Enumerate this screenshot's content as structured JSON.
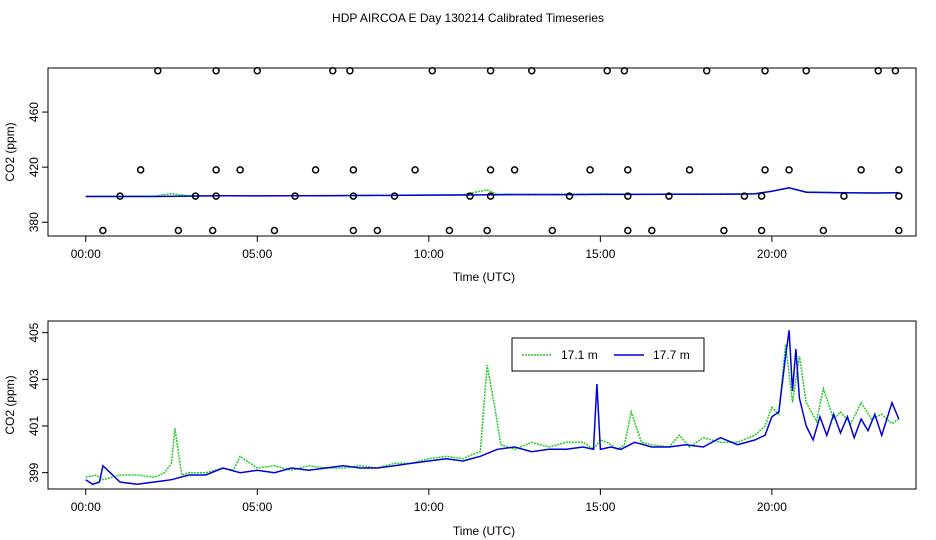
{
  "title": "HDP AIRCOA E  Day 130214  Calibrated Timeseries",
  "colors": {
    "s171": "#22cc22",
    "s177": "#0000dd",
    "points": "#000000"
  },
  "chart_data": [
    {
      "type": "line",
      "panel": "top",
      "xlabel": "Time (UTC)",
      "ylabel": "CO2 (ppm)",
      "xlim": [
        -1.1,
        24.2
      ],
      "ylim": [
        370,
        492
      ],
      "x_ticks": [
        0,
        5,
        10,
        15,
        20
      ],
      "x_tick_labels": [
        "00:00",
        "05:00",
        "10:00",
        "15:00",
        "20:00"
      ],
      "y_ticks": [
        380,
        420,
        460
      ],
      "y_tick_labels": [
        "380",
        "420",
        "460"
      ],
      "grid": false,
      "series": [
        {
          "color_key": "s171",
          "x": [
            0,
            2,
            2.5,
            3,
            4,
            5,
            6,
            7,
            8,
            9,
            10,
            11,
            11.7,
            12,
            13,
            14,
            15,
            16,
            17,
            18,
            19,
            19.5,
            20,
            20.5,
            21,
            22,
            23,
            23.7
          ],
          "values": [
            398.8,
            399.0,
            400.8,
            399.2,
            399.3,
            399.2,
            399.3,
            399.4,
            399.5,
            399.6,
            399.8,
            400.0,
            403.5,
            400.3,
            400.3,
            400.3,
            400.5,
            400.3,
            400.4,
            400.5,
            400.6,
            400.8,
            402.5,
            404.8,
            402.0,
            401.5,
            401.2,
            401.5
          ]
        },
        {
          "color_key": "s177",
          "x": [
            0,
            2,
            3,
            4,
            5,
            6,
            7,
            8,
            9,
            10,
            11,
            12,
            13,
            14,
            15,
            16,
            17,
            18,
            19,
            19.5,
            20,
            20.5,
            21,
            22,
            23,
            23.7
          ],
          "values": [
            398.7,
            398.7,
            399.0,
            399.2,
            399.1,
            399.2,
            399.3,
            399.4,
            399.5,
            399.7,
            399.8,
            400.0,
            400.1,
            400.1,
            400.2,
            400.2,
            400.3,
            400.3,
            400.4,
            400.6,
            402.5,
            405.0,
            401.8,
            401.4,
            401.2,
            401.4
          ]
        }
      ],
      "points": [
        {
          "x": 0.5,
          "y": 374
        },
        {
          "x": 2.1,
          "y": 490
        },
        {
          "x": 3.8,
          "y": 490
        },
        {
          "x": 5.0,
          "y": 490
        },
        {
          "x": 7.2,
          "y": 490
        },
        {
          "x": 7.7,
          "y": 490
        },
        {
          "x": 10.1,
          "y": 490
        },
        {
          "x": 11.8,
          "y": 490
        },
        {
          "x": 13.0,
          "y": 490
        },
        {
          "x": 15.2,
          "y": 490
        },
        {
          "x": 15.7,
          "y": 490
        },
        {
          "x": 18.1,
          "y": 490
        },
        {
          "x": 19.8,
          "y": 490
        },
        {
          "x": 21.0,
          "y": 490
        },
        {
          "x": 23.1,
          "y": 490
        },
        {
          "x": 23.6,
          "y": 490
        },
        {
          "x": 1.6,
          "y": 418
        },
        {
          "x": 3.8,
          "y": 418
        },
        {
          "x": 4.5,
          "y": 418
        },
        {
          "x": 6.7,
          "y": 418
        },
        {
          "x": 7.8,
          "y": 418
        },
        {
          "x": 9.6,
          "y": 418
        },
        {
          "x": 11.8,
          "y": 418
        },
        {
          "x": 12.5,
          "y": 418
        },
        {
          "x": 14.7,
          "y": 418
        },
        {
          "x": 15.8,
          "y": 418
        },
        {
          "x": 17.6,
          "y": 418
        },
        {
          "x": 19.8,
          "y": 418
        },
        {
          "x": 20.5,
          "y": 418
        },
        {
          "x": 22.6,
          "y": 418
        },
        {
          "x": 23.7,
          "y": 418
        },
        {
          "x": 1.0,
          "y": 399
        },
        {
          "x": 3.2,
          "y": 399
        },
        {
          "x": 3.8,
          "y": 399
        },
        {
          "x": 6.1,
          "y": 399
        },
        {
          "x": 7.8,
          "y": 399
        },
        {
          "x": 9.0,
          "y": 399
        },
        {
          "x": 11.2,
          "y": 399
        },
        {
          "x": 11.8,
          "y": 399
        },
        {
          "x": 14.1,
          "y": 399
        },
        {
          "x": 15.8,
          "y": 399
        },
        {
          "x": 17.0,
          "y": 399
        },
        {
          "x": 19.2,
          "y": 399
        },
        {
          "x": 19.7,
          "y": 399
        },
        {
          "x": 22.1,
          "y": 399
        },
        {
          "x": 23.7,
          "y": 399
        },
        {
          "x": 2.7,
          "y": 374
        },
        {
          "x": 3.7,
          "y": 374
        },
        {
          "x": 5.5,
          "y": 374
        },
        {
          "x": 7.8,
          "y": 374
        },
        {
          "x": 8.5,
          "y": 374
        },
        {
          "x": 10.6,
          "y": 374
        },
        {
          "x": 11.7,
          "y": 374
        },
        {
          "x": 13.6,
          "y": 374
        },
        {
          "x": 15.8,
          "y": 374
        },
        {
          "x": 16.5,
          "y": 374
        },
        {
          "x": 18.6,
          "y": 374
        },
        {
          "x": 19.7,
          "y": 374
        },
        {
          "x": 21.5,
          "y": 374
        },
        {
          "x": 23.7,
          "y": 374
        }
      ]
    },
    {
      "type": "line",
      "panel": "bottom",
      "xlabel": "Time (UTC)",
      "ylabel": "CO2 (ppm)",
      "xlim": [
        -1.1,
        24.2
      ],
      "ylim": [
        398.3,
        405.5
      ],
      "x_ticks": [
        0,
        5,
        10,
        15,
        20
      ],
      "x_tick_labels": [
        "00:00",
        "05:00",
        "10:00",
        "15:00",
        "20:00"
      ],
      "y_ticks": [
        399,
        401,
        403,
        405
      ],
      "y_tick_labels": [
        "399",
        "401",
        "403",
        "405"
      ],
      "grid": false,
      "legend": {
        "placement": "top-right-center"
      },
      "series": [
        {
          "name": "17.1 m",
          "color_key": "s171",
          "x": [
            0,
            0.3,
            0.5,
            1.0,
            1.5,
            2.0,
            2.3,
            2.5,
            2.6,
            2.8,
            3.0,
            3.5,
            4.0,
            4.3,
            4.5,
            5.0,
            5.5,
            6.0,
            6.5,
            7.0,
            7.5,
            8.0,
            8.5,
            9.0,
            9.5,
            10.0,
            10.5,
            11.0,
            11.3,
            11.5,
            11.7,
            11.9,
            12.1,
            12.3,
            12.5,
            13.0,
            13.5,
            14.0,
            14.5,
            14.8,
            15.0,
            15.2,
            15.5,
            15.7,
            15.9,
            16.2,
            16.5,
            17.0,
            17.3,
            17.6,
            18.0,
            18.5,
            19.0,
            19.5,
            19.8,
            20.0,
            20.2,
            20.4,
            20.6,
            20.8,
            21.0,
            21.3,
            21.5,
            21.8,
            22.0,
            22.3,
            22.6,
            22.9,
            23.2,
            23.5,
            23.7
          ],
          "values": [
            398.8,
            398.9,
            398.7,
            398.9,
            398.9,
            398.8,
            399.0,
            399.4,
            400.9,
            398.9,
            399.0,
            399.0,
            399.2,
            399.1,
            399.7,
            399.2,
            399.3,
            399.1,
            399.3,
            399.2,
            399.2,
            399.3,
            399.2,
            399.4,
            399.4,
            399.6,
            399.7,
            399.6,
            399.8,
            399.9,
            403.6,
            402.0,
            400.2,
            400.1,
            400.0,
            400.3,
            400.1,
            400.3,
            400.3,
            400.0,
            400.4,
            400.3,
            400.0,
            400.2,
            401.6,
            400.3,
            400.2,
            400.1,
            400.6,
            400.1,
            400.5,
            400.3,
            400.3,
            400.6,
            401.0,
            401.8,
            401.5,
            404.5,
            402.0,
            404.0,
            402.0,
            401.2,
            402.6,
            401.3,
            401.6,
            401.1,
            402.0,
            401.3,
            401.5,
            401.1,
            401.3
          ]
        },
        {
          "name": "17.7 m",
          "color_key": "s177",
          "x": [
            0,
            0.2,
            0.4,
            0.5,
            1.0,
            1.5,
            2.0,
            2.5,
            3.0,
            3.5,
            4.0,
            4.5,
            5.0,
            5.5,
            6.0,
            6.5,
            7.0,
            7.5,
            8.0,
            8.5,
            9.0,
            9.5,
            10.0,
            10.5,
            11.0,
            11.5,
            12.0,
            12.5,
            13.0,
            13.5,
            14.0,
            14.5,
            14.8,
            14.9,
            15.0,
            15.3,
            15.6,
            16.0,
            16.5,
            17.0,
            17.5,
            18.0,
            18.5,
            19.0,
            19.5,
            19.8,
            20.0,
            20.2,
            20.4,
            20.5,
            20.6,
            20.7,
            20.8,
            21.0,
            21.2,
            21.4,
            21.6,
            21.8,
            22.0,
            22.2,
            22.4,
            22.6,
            22.8,
            23.0,
            23.2,
            23.5,
            23.7
          ],
          "values": [
            398.7,
            398.5,
            398.6,
            399.3,
            398.6,
            398.5,
            398.6,
            398.7,
            398.9,
            398.9,
            399.2,
            399.0,
            399.1,
            399.0,
            399.2,
            399.1,
            399.2,
            399.3,
            399.2,
            399.2,
            399.3,
            399.4,
            399.5,
            399.6,
            399.5,
            399.7,
            400.0,
            400.1,
            399.9,
            400.0,
            400.0,
            400.1,
            400.0,
            402.8,
            400.0,
            400.1,
            400.0,
            400.3,
            400.1,
            400.1,
            400.2,
            400.1,
            400.5,
            400.2,
            400.4,
            400.6,
            401.4,
            401.6,
            404.0,
            405.1,
            402.5,
            404.3,
            402.2,
            401.0,
            400.4,
            401.4,
            400.6,
            401.5,
            400.7,
            401.4,
            400.5,
            401.3,
            400.8,
            401.5,
            400.6,
            402.0,
            401.3
          ]
        }
      ]
    }
  ]
}
